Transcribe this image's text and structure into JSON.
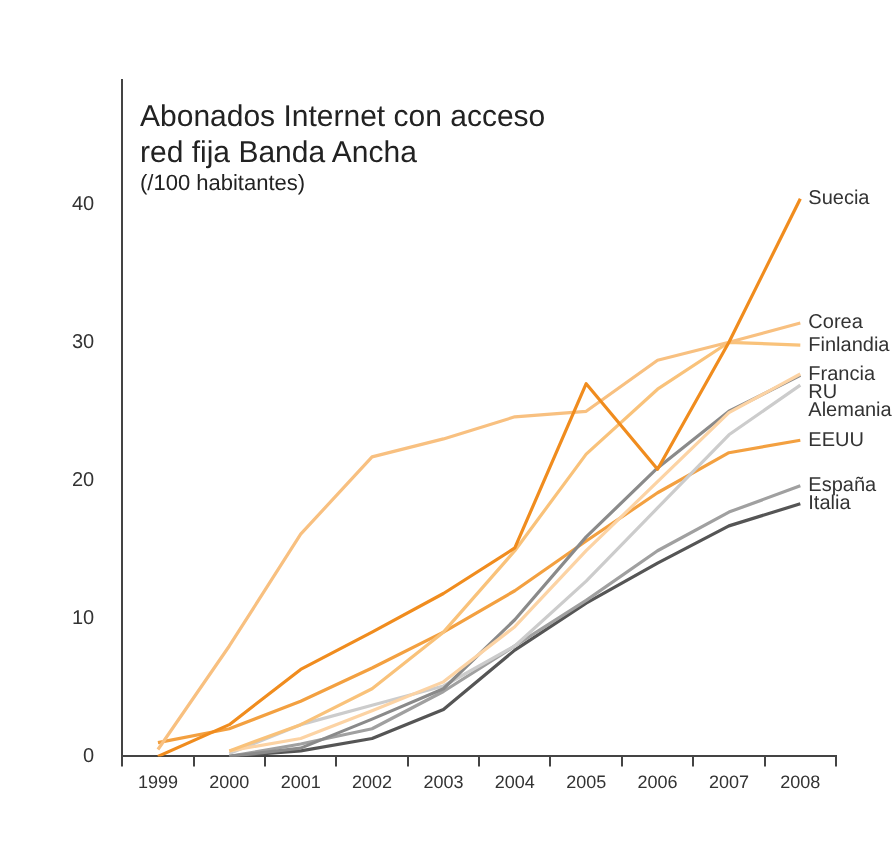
{
  "chart_data": {
    "type": "line",
    "title": "Abonados Internet con acceso red fija Banda Ancha",
    "subtitle": "(/100 habitantes)",
    "categories": [
      "1999",
      "2000",
      "2001",
      "2002",
      "2003",
      "2004",
      "2005",
      "2006",
      "2007",
      "2008"
    ],
    "series": [
      {
        "name": "Suecia",
        "color": "#f08c1e",
        "values": [
          0,
          2.3,
          6.3,
          9,
          11.8,
          15.1,
          27,
          20.8,
          30,
          40.4
        ]
      },
      {
        "name": "Corea",
        "color": "#f8c080",
        "values": [
          0.5,
          8,
          16.1,
          21.7,
          23,
          24.6,
          25,
          28.7,
          30,
          31.4
        ]
      },
      {
        "name": "Finlandia",
        "color": "#f9c27a",
        "values": [
          null,
          0.4,
          2.3,
          4.9,
          9,
          14.9,
          21.9,
          26.6,
          30,
          29.8
        ]
      },
      {
        "name": "Francia",
        "color": "#fcd3a4",
        "values": [
          null,
          0.4,
          1.3,
          3.3,
          5.4,
          9.4,
          14.9,
          19.9,
          24.9,
          27.7
        ]
      },
      {
        "name": "RU",
        "color": "#8a8a8a",
        "values": [
          null,
          0,
          0.6,
          2.7,
          4.9,
          9.9,
          15.9,
          20.9,
          25,
          27.6
        ]
      },
      {
        "name": "Alemania",
        "color": "#cccccc",
        "values": [
          null,
          0.2,
          2.3,
          3.7,
          5.1,
          8,
          12.7,
          18,
          23.3,
          26.9
        ]
      },
      {
        "name": "EEUU",
        "color": "#f3a040",
        "values": [
          1,
          2,
          4,
          6.4,
          9,
          12,
          15.6,
          19.1,
          22,
          22.9
        ]
      },
      {
        "name": "España",
        "color": "#a0a0a0",
        "values": [
          null,
          0,
          0.9,
          2,
          4.7,
          8,
          11.3,
          14.9,
          17.7,
          19.6
        ]
      },
      {
        "name": "Italia",
        "color": "#555555",
        "values": [
          null,
          0,
          0.4,
          1.3,
          3.4,
          7.7,
          11.1,
          14,
          16.7,
          18.3
        ]
      }
    ],
    "ylim": [
      0,
      49
    ],
    "yticks": [
      0,
      10,
      20,
      30,
      40
    ],
    "grid": false,
    "legend": false,
    "marker": "none",
    "line_style": "solid"
  }
}
